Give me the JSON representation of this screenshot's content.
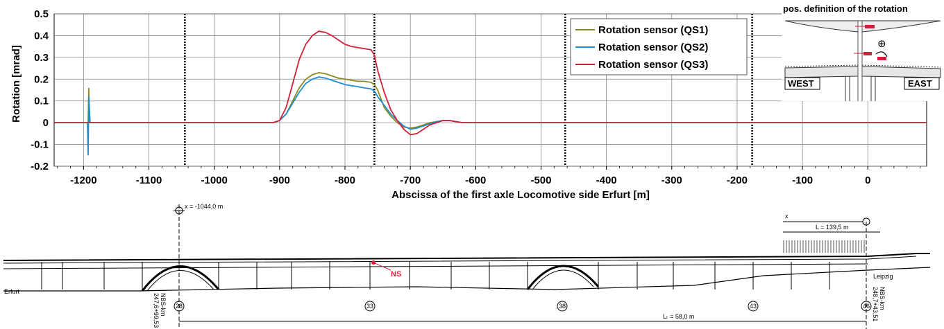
{
  "chart_data": {
    "type": "line",
    "xlabel": "Abscissa of the first axle Locomotive side Erfurt [m]",
    "ylabel": "Rotation [mrad]",
    "xlim": [
      -1245,
      90
    ],
    "ylim": [
      -0.2,
      0.5
    ],
    "x_ticks": [
      -1200,
      -1100,
      -1000,
      -900,
      -800,
      -700,
      -600,
      -500,
      -400,
      -300,
      -200,
      -100,
      0
    ],
    "x_tick_labels": [
      "-1200",
      "-1100",
      "-1000",
      "-900",
      "-800",
      "-700",
      "-600",
      "-500",
      "-400",
      "-300",
      "-200",
      "-100",
      "0"
    ],
    "y_ticks": [
      -0.2,
      -0.1,
      0,
      0.1,
      0.2,
      0.3,
      0.4,
      0.5
    ],
    "y_tick_labels": [
      "-0.2",
      "-0.1",
      "0",
      "0.1",
      "0.2",
      "0.3",
      "0.4",
      "0.5"
    ],
    "grid": true,
    "dotted_vertical_lines": [
      -1045,
      -755,
      -463,
      -177
    ],
    "legend_position": "top-right",
    "series": [
      {
        "name": "Rotation sensor (QS1)",
        "color": "#8c8a1e",
        "x": [
          -1245,
          -1193,
          -1192,
          -1191,
          -1189,
          -1150,
          -1000,
          -910,
          -900,
          -890,
          -880,
          -870,
          -860,
          -850,
          -840,
          -830,
          -820,
          -810,
          -800,
          -790,
          -780,
          -770,
          -760,
          -755,
          -750,
          -745,
          -740,
          -730,
          -720,
          -710,
          -700,
          -690,
          -680,
          -670,
          -660,
          -650,
          -640,
          -630,
          -620,
          -610,
          -600,
          -550,
          -500,
          -400,
          -300,
          -200,
          -100,
          0,
          90
        ],
        "y": [
          0,
          0,
          0.16,
          0,
          0,
          0,
          0,
          0,
          0.01,
          0.04,
          0.1,
          0.16,
          0.2,
          0.22,
          0.23,
          0.225,
          0.215,
          0.205,
          0.2,
          0.195,
          0.19,
          0.19,
          0.185,
          0.175,
          0.15,
          0.11,
          0.07,
          0.03,
          0.0,
          -0.02,
          -0.025,
          -0.02,
          -0.01,
          0.0,
          0.005,
          0.01,
          0.01,
          0.005,
          0.0,
          0.0,
          0.0,
          0.0,
          0.0,
          0.0,
          0.0,
          0.0,
          0.0,
          0.0,
          0.0
        ]
      },
      {
        "name": "Rotation sensor (QS2)",
        "color": "#1a8fd6",
        "x": [
          -1245,
          -1194,
          -1193,
          -1192,
          -1190,
          -1150,
          -1000,
          -910,
          -900,
          -890,
          -880,
          -870,
          -860,
          -850,
          -840,
          -830,
          -820,
          -810,
          -800,
          -790,
          -780,
          -770,
          -760,
          -755,
          -750,
          -740,
          -730,
          -720,
          -710,
          -700,
          -690,
          -680,
          -670,
          -660,
          -650,
          -640,
          -630,
          -620,
          -610,
          -600,
          -550,
          -500,
          -400,
          -300,
          -200,
          -100,
          0,
          90
        ],
        "y": [
          0,
          0,
          -0.15,
          0.12,
          0,
          0,
          0,
          0,
          0.01,
          0.04,
          0.09,
          0.14,
          0.18,
          0.2,
          0.21,
          0.205,
          0.195,
          0.185,
          0.175,
          0.17,
          0.165,
          0.16,
          0.155,
          0.145,
          0.12,
          0.08,
          0.04,
          0.01,
          -0.015,
          -0.03,
          -0.025,
          -0.015,
          -0.005,
          0.005,
          0.01,
          0.01,
          0.005,
          0.0,
          0.0,
          0.0,
          0.0,
          0.0,
          0.0,
          0.0,
          0.0,
          0.0,
          0.0,
          0.0
        ]
      },
      {
        "name": "Rotation sensor (QS3)",
        "color": "#d0203a",
        "x": [
          -1245,
          -1150,
          -1000,
          -910,
          -900,
          -890,
          -880,
          -870,
          -860,
          -850,
          -840,
          -830,
          -820,
          -810,
          -800,
          -790,
          -780,
          -770,
          -760,
          -755,
          -750,
          -740,
          -730,
          -720,
          -710,
          -700,
          -690,
          -680,
          -670,
          -660,
          -650,
          -640,
          -630,
          -620,
          -610,
          -600,
          -550,
          -500,
          -400,
          -300,
          -200,
          -100,
          0,
          90
        ],
        "y": [
          0,
          0,
          0,
          0,
          0.01,
          0.07,
          0.18,
          0.29,
          0.36,
          0.4,
          0.42,
          0.415,
          0.4,
          0.38,
          0.36,
          0.35,
          0.345,
          0.34,
          0.335,
          0.31,
          0.24,
          0.14,
          0.06,
          0.01,
          -0.03,
          -0.055,
          -0.05,
          -0.03,
          -0.01,
          0.0,
          0.01,
          0.01,
          0.005,
          0.0,
          0.0,
          0.0,
          0.0,
          0.0,
          0.0,
          0.0,
          0.0,
          0.0,
          0.0,
          0.0
        ]
      }
    ]
  },
  "inset": {
    "title": "pos. definition of the rotation",
    "west_label": "WEST",
    "east_label": "EAST",
    "plus_symbol": "⊕"
  },
  "bridge": {
    "x_marker_label": "x = -1044,0 m",
    "span_label": "L = 139,5 m",
    "x_label": "x",
    "sensor_label": "NS",
    "sensor_color": "#d0203a",
    "left_city": "Erfurt",
    "right_city": "Leipzig",
    "left_km": "NBS-km\n247,6+99,53",
    "right_km": "NBS-km\n248,7+43,51",
    "pier_labels": [
      "28",
      "33",
      "38",
      "43",
      "46"
    ],
    "lt_label": "Lₜ = 58,0 m"
  }
}
